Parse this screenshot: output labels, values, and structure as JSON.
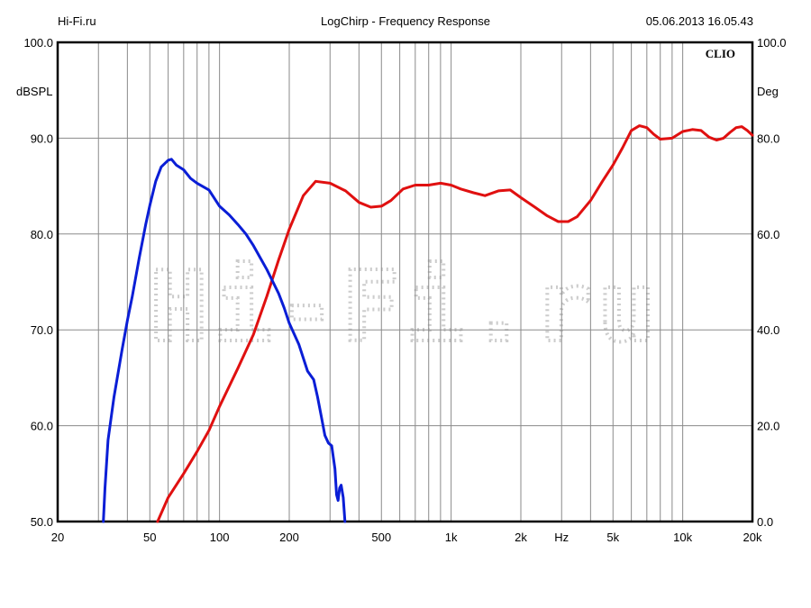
{
  "header": {
    "left": "Hi-Fi.ru",
    "center": "LogChirp - Frequency Response",
    "right": "05.06.2013 16.05.43"
  },
  "brand_label": "CLIO",
  "watermark_text": "Hi-Fi.ru",
  "chart_data": {
    "type": "line",
    "x_scale": "log",
    "xlim": [
      20,
      20000
    ],
    "x_ticks": [
      {
        "value": 20,
        "label": "20"
      },
      {
        "value": 50,
        "label": "50"
      },
      {
        "value": 100,
        "label": "100"
      },
      {
        "value": 200,
        "label": "200"
      },
      {
        "value": 500,
        "label": "500"
      },
      {
        "value": 1000,
        "label": "1k"
      },
      {
        "value": 2000,
        "label": "2k"
      },
      {
        "value": 3000,
        "label": "Hz"
      },
      {
        "value": 5000,
        "label": "5k"
      },
      {
        "value": 10000,
        "label": "10k"
      },
      {
        "value": 20000,
        "label": "20k"
      }
    ],
    "ylim_left": [
      50,
      100
    ],
    "ylabel_left": "dBSPL",
    "y_ticks_left": [
      "50.0",
      "60.0",
      "70.0",
      "80.0",
      "90.0",
      "100.0"
    ],
    "ylim_right": [
      0,
      100
    ],
    "ylabel_right": "Deg",
    "y_ticks_right": [
      "0.0",
      "20.0",
      "40.0",
      "60.0",
      "80.0",
      "100.0"
    ],
    "grid": true,
    "series": [
      {
        "color": "#e01010",
        "axis": "left",
        "points": [
          [
            54,
            50
          ],
          [
            60,
            52.5
          ],
          [
            70,
            55
          ],
          [
            80,
            57.3
          ],
          [
            90,
            59.5
          ],
          [
            100,
            62
          ],
          [
            120,
            66
          ],
          [
            140,
            69.5
          ],
          [
            160,
            73.5
          ],
          [
            180,
            77.3
          ],
          [
            200,
            80.5
          ],
          [
            230,
            84
          ],
          [
            260,
            85.5
          ],
          [
            300,
            85.3
          ],
          [
            350,
            84.5
          ],
          [
            400,
            83.3
          ],
          [
            450,
            82.8
          ],
          [
            500,
            82.9
          ],
          [
            550,
            83.5
          ],
          [
            620,
            84.7
          ],
          [
            700,
            85.1
          ],
          [
            800,
            85.1
          ],
          [
            900,
            85.3
          ],
          [
            1000,
            85.1
          ],
          [
            1100,
            84.7
          ],
          [
            1250,
            84.3
          ],
          [
            1400,
            84
          ],
          [
            1600,
            84.5
          ],
          [
            1800,
            84.6
          ],
          [
            2000,
            83.8
          ],
          [
            2300,
            82.8
          ],
          [
            2600,
            81.9
          ],
          [
            2900,
            81.3
          ],
          [
            3200,
            81.3
          ],
          [
            3500,
            81.8
          ],
          [
            4000,
            83.5
          ],
          [
            4500,
            85.5
          ],
          [
            5000,
            87.2
          ],
          [
            5500,
            89
          ],
          [
            6000,
            90.8
          ],
          [
            6500,
            91.3
          ],
          [
            7000,
            91.1
          ],
          [
            7500,
            90.4
          ],
          [
            8000,
            89.9
          ],
          [
            9000,
            90
          ],
          [
            10000,
            90.7
          ],
          [
            11000,
            90.9
          ],
          [
            12000,
            90.8
          ],
          [
            13000,
            90.1
          ],
          [
            14000,
            89.8
          ],
          [
            15000,
            90
          ],
          [
            16000,
            90.6
          ],
          [
            17000,
            91.1
          ],
          [
            18000,
            91.2
          ],
          [
            19000,
            90.8
          ],
          [
            20000,
            90.3
          ]
        ]
      },
      {
        "color": "#0a1ed6",
        "axis": "left",
        "points": [
          [
            31.5,
            50
          ],
          [
            32,
            53.5
          ],
          [
            33,
            58.5
          ],
          [
            35,
            63
          ],
          [
            38,
            68
          ],
          [
            40,
            71
          ],
          [
            42,
            73.5
          ],
          [
            45,
            77.5
          ],
          [
            48,
            81
          ],
          [
            50,
            83
          ],
          [
            53,
            85.5
          ],
          [
            56,
            87
          ],
          [
            60,
            87.7
          ],
          [
            62,
            87.8
          ],
          [
            65,
            87.2
          ],
          [
            70,
            86.7
          ],
          [
            75,
            85.8
          ],
          [
            80,
            85.3
          ],
          [
            90,
            84.6
          ],
          [
            100,
            82.9
          ],
          [
            110,
            82
          ],
          [
            120,
            81
          ],
          [
            130,
            80
          ],
          [
            140,
            78.8
          ],
          [
            150,
            77.5
          ],
          [
            160,
            76.3
          ],
          [
            170,
            75
          ],
          [
            180,
            73.8
          ],
          [
            190,
            72.3
          ],
          [
            200,
            70.7
          ],
          [
            220,
            68.5
          ],
          [
            240,
            65.7
          ],
          [
            255,
            64.8
          ],
          [
            265,
            63
          ],
          [
            275,
            61
          ],
          [
            285,
            59
          ],
          [
            295,
            58.2
          ],
          [
            305,
            57.9
          ],
          [
            315,
            55.5
          ],
          [
            320,
            52.8
          ],
          [
            325,
            52.2
          ],
          [
            330,
            53.5
          ],
          [
            335,
            53.8
          ],
          [
            342,
            52.5
          ],
          [
            348,
            50
          ]
        ]
      }
    ]
  }
}
